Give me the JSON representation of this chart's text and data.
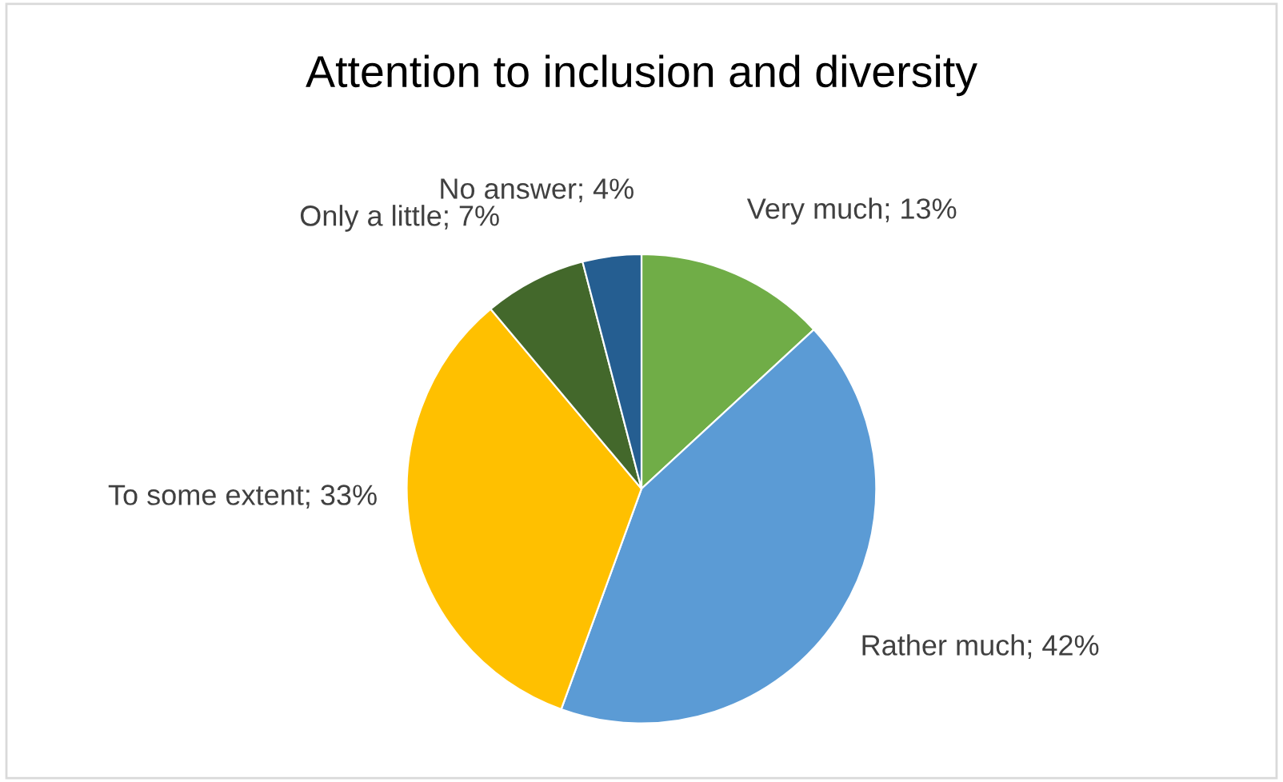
{
  "chart_data": {
    "type": "pie",
    "title": "Attention to inclusion and diversity",
    "categories": [
      "Very much",
      "Rather much",
      "To some extent",
      "Only a little",
      "No answer"
    ],
    "values": [
      13,
      42,
      33,
      7,
      4
    ],
    "value_labels": [
      "; 13%",
      "; 42%",
      "; 33%",
      "; 7%",
      "; 4%"
    ],
    "colors": [
      "#70ad47",
      "#5b9bd5",
      "#ffc000",
      "#43682b",
      "#255e91"
    ],
    "legend": false
  }
}
